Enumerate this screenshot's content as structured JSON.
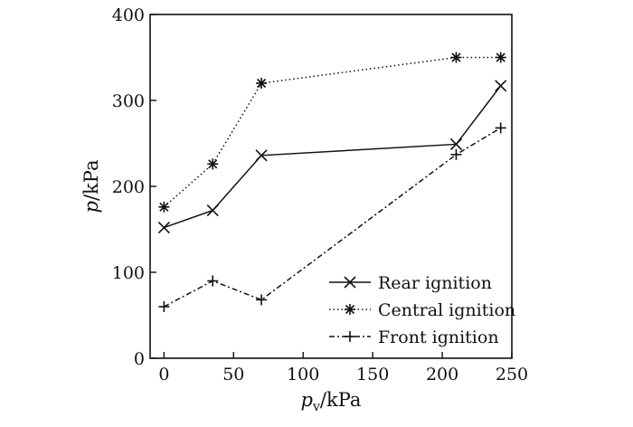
{
  "chart_data": {
    "type": "line",
    "title": "",
    "xlabel": {
      "main": "p",
      "sub": "v",
      "unit": "/kPa"
    },
    "ylabel": {
      "main": "p",
      "unit": "/kPa"
    },
    "xlim": [
      -10,
      250
    ],
    "ylim": [
      0,
      400
    ],
    "xticks": [
      0,
      50,
      100,
      150,
      200,
      250
    ],
    "yticks": [
      0,
      100,
      200,
      300,
      400
    ],
    "grid": false,
    "legend_position": "bottom-right",
    "series": [
      {
        "name": "Rear ignition",
        "line_style": "solid",
        "marker": "x",
        "x": [
          0,
          35,
          70,
          210,
          242
        ],
        "y": [
          152,
          172,
          236,
          249,
          317
        ]
      },
      {
        "name": "Central ignition",
        "line_style": "dotted",
        "marker": "asterisk",
        "x": [
          0,
          35,
          70,
          210,
          242
        ],
        "y": [
          176,
          226,
          320,
          350,
          350
        ]
      },
      {
        "name": "Front ignition",
        "line_style": "dash-dot",
        "marker": "plus",
        "x": [
          0,
          35,
          70,
          210,
          242
        ],
        "y": [
          60,
          90,
          68,
          237,
          268
        ]
      }
    ]
  }
}
